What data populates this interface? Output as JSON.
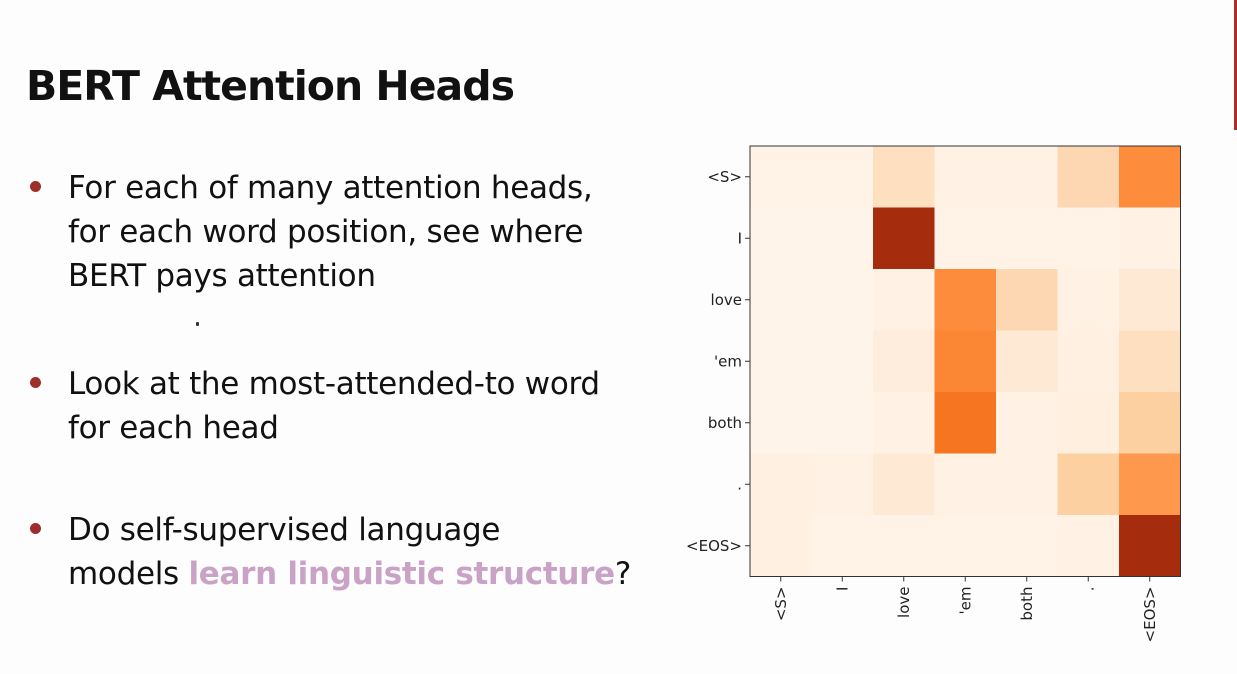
{
  "slide": {
    "title": "BERT Attention Heads",
    "bullets": [
      {
        "lines": [
          "For each of many attention heads,",
          "for each word position, see where",
          "BERT pays attention"
        ]
      },
      {
        "lines": [
          "Look at the most-attended-to word",
          "for each head"
        ]
      },
      {
        "line1": "Do self-supervised language",
        "line2_prefix": "models ",
        "line2_highlight": "learn linguistic structure",
        "line2_suffix": "?"
      }
    ],
    "colors": {
      "accent": "#9c2f2a",
      "highlight": "#c9a2c6"
    }
  },
  "chart_data": {
    "type": "heatmap",
    "title": "",
    "xlabel": "",
    "ylabel": "",
    "x_labels": [
      "<S>",
      "I",
      "love",
      "'em",
      "both",
      ".",
      "<EOS>"
    ],
    "y_labels": [
      "<S>",
      "I",
      "love",
      "'em",
      "both",
      ".",
      "<EOS>"
    ],
    "colormap": "Oranges",
    "values": [
      [
        0.02,
        0.02,
        0.2,
        0.03,
        0.03,
        0.25,
        0.6
      ],
      [
        0.01,
        0.01,
        0.95,
        0.02,
        0.02,
        0.02,
        0.03
      ],
      [
        0.01,
        0.01,
        0.04,
        0.6,
        0.25,
        0.03,
        0.12
      ],
      [
        0.01,
        0.01,
        0.08,
        0.62,
        0.12,
        0.05,
        0.2
      ],
      [
        0.01,
        0.01,
        0.03,
        0.68,
        0.03,
        0.06,
        0.3
      ],
      [
        0.05,
        0.04,
        0.12,
        0.03,
        0.03,
        0.3,
        0.55
      ],
      [
        0.05,
        0.02,
        0.02,
        0.02,
        0.02,
        0.03,
        0.95
      ]
    ]
  }
}
